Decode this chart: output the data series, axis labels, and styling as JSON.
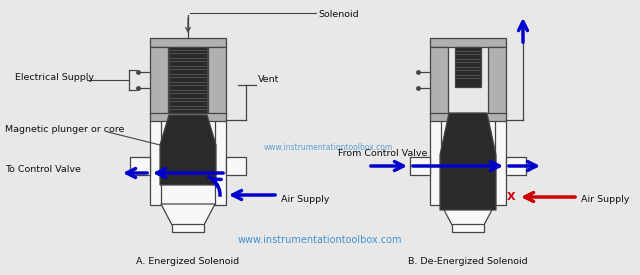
{
  "bg_color": "#e8e8e8",
  "watermark": "www.instrumentationtoolbox.com",
  "label_solenoid": "Solenoid",
  "label_electrical": "Electrical Supply",
  "label_magnetic": "Magnetic plunger or core",
  "label_to_cv": "To Control Valve",
  "label_from_cv": "From Control Valve",
  "label_vent": "Vent",
  "label_air_a": "Air Supply",
  "label_air_b": "Air Supply",
  "label_a": "A. Energized Solenoid",
  "label_b": "B. De-Energized Solenoid",
  "gray_light": "#b8b8b8",
  "gray_dark": "#2a2a2a",
  "gray_medium": "#707070",
  "gray_box": "#b0b0b0",
  "gray_inner": "#c0c0c0",
  "white": "#f8f8f8",
  "blue_arrow": "#0000cc",
  "red_arrow": "#cc0000",
  "line_color": "#444444",
  "text_color": "#111111",
  "watermark_color": "#3388cc"
}
